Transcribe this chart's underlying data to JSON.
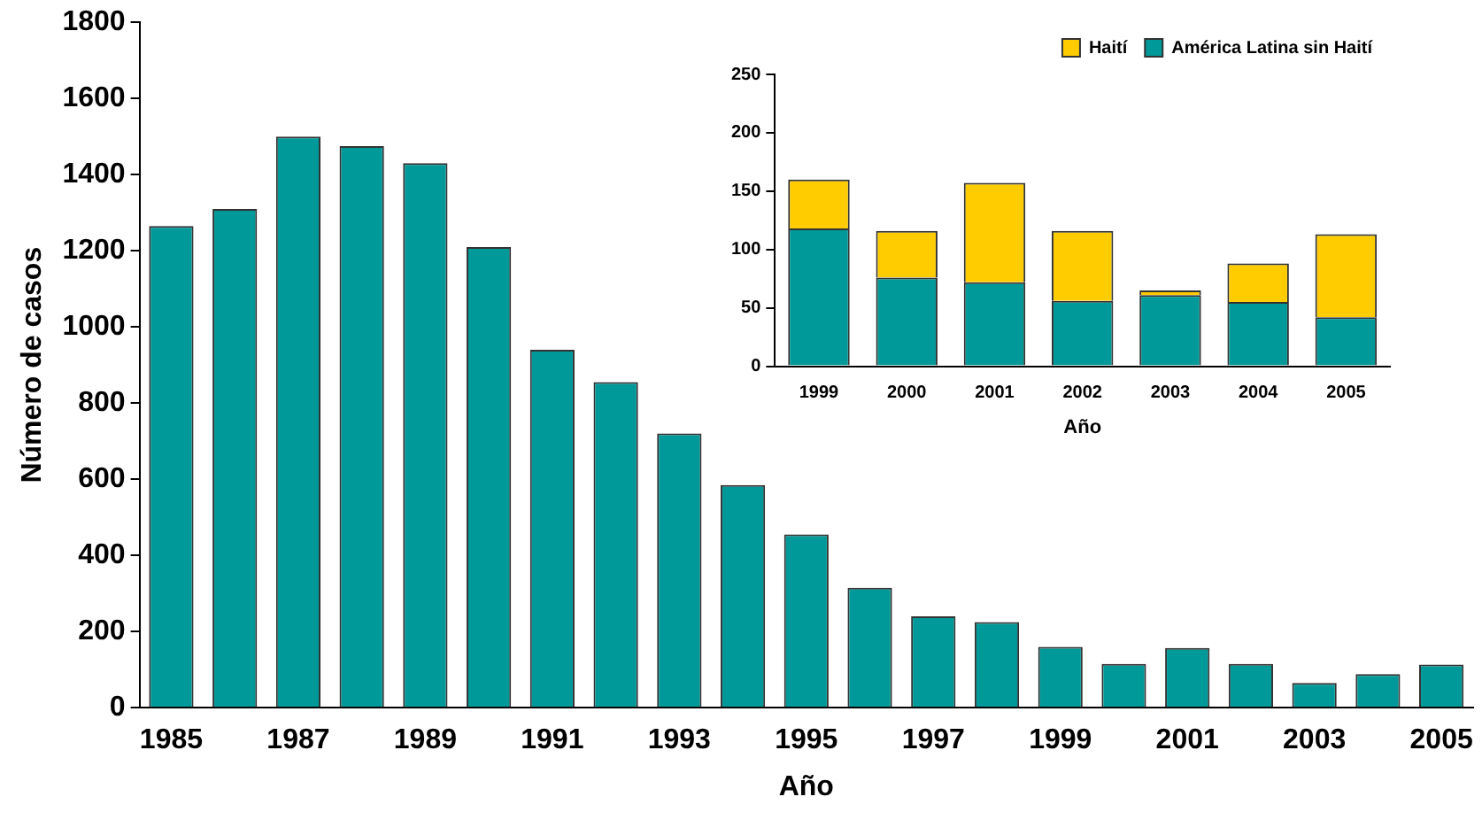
{
  "chart_data": [
    {
      "type": "bar",
      "xlabel": "Año",
      "ylabel": "Número de casos",
      "categories": [
        "1985",
        null,
        "1987",
        null,
        "1989",
        null,
        "1991",
        null,
        "1993",
        null,
        "1995",
        null,
        "1997",
        null,
        "1999",
        null,
        "2001",
        null,
        "2003",
        null,
        "2005"
      ],
      "series": [
        {
          "color": "#009999",
          "values": [
            1265,
            1310,
            1500,
            1475,
            1430,
            1210,
            940,
            855,
            720,
            585,
            455,
            315,
            240,
            225,
            160,
            115,
            157,
            115,
            65,
            88,
            113
          ]
        }
      ],
      "ylim": [
        0,
        1800
      ],
      "yticks": [
        0,
        200,
        400,
        600,
        800,
        1000,
        1200,
        1400,
        1600,
        1800
      ],
      "grid": false,
      "legend": false
    },
    {
      "type": "bar",
      "xlabel": "Año",
      "categories": [
        "1999",
        "2000",
        "2001",
        "2002",
        "2003",
        "2004",
        "2005"
      ],
      "stacked": true,
      "series": [
        {
          "name": "América Latina sin Haití",
          "color": "#009999",
          "values": [
            118,
            76,
            72,
            56,
            61,
            55,
            42
          ]
        },
        {
          "name": "Haití",
          "color": "#ffcc00",
          "values": [
            42,
            40,
            85,
            60,
            4,
            33,
            71
          ]
        }
      ],
      "ylim": [
        0,
        250
      ],
      "yticks": [
        0,
        50,
        100,
        150,
        200,
        250
      ],
      "grid": false,
      "legend": "top right"
    }
  ]
}
